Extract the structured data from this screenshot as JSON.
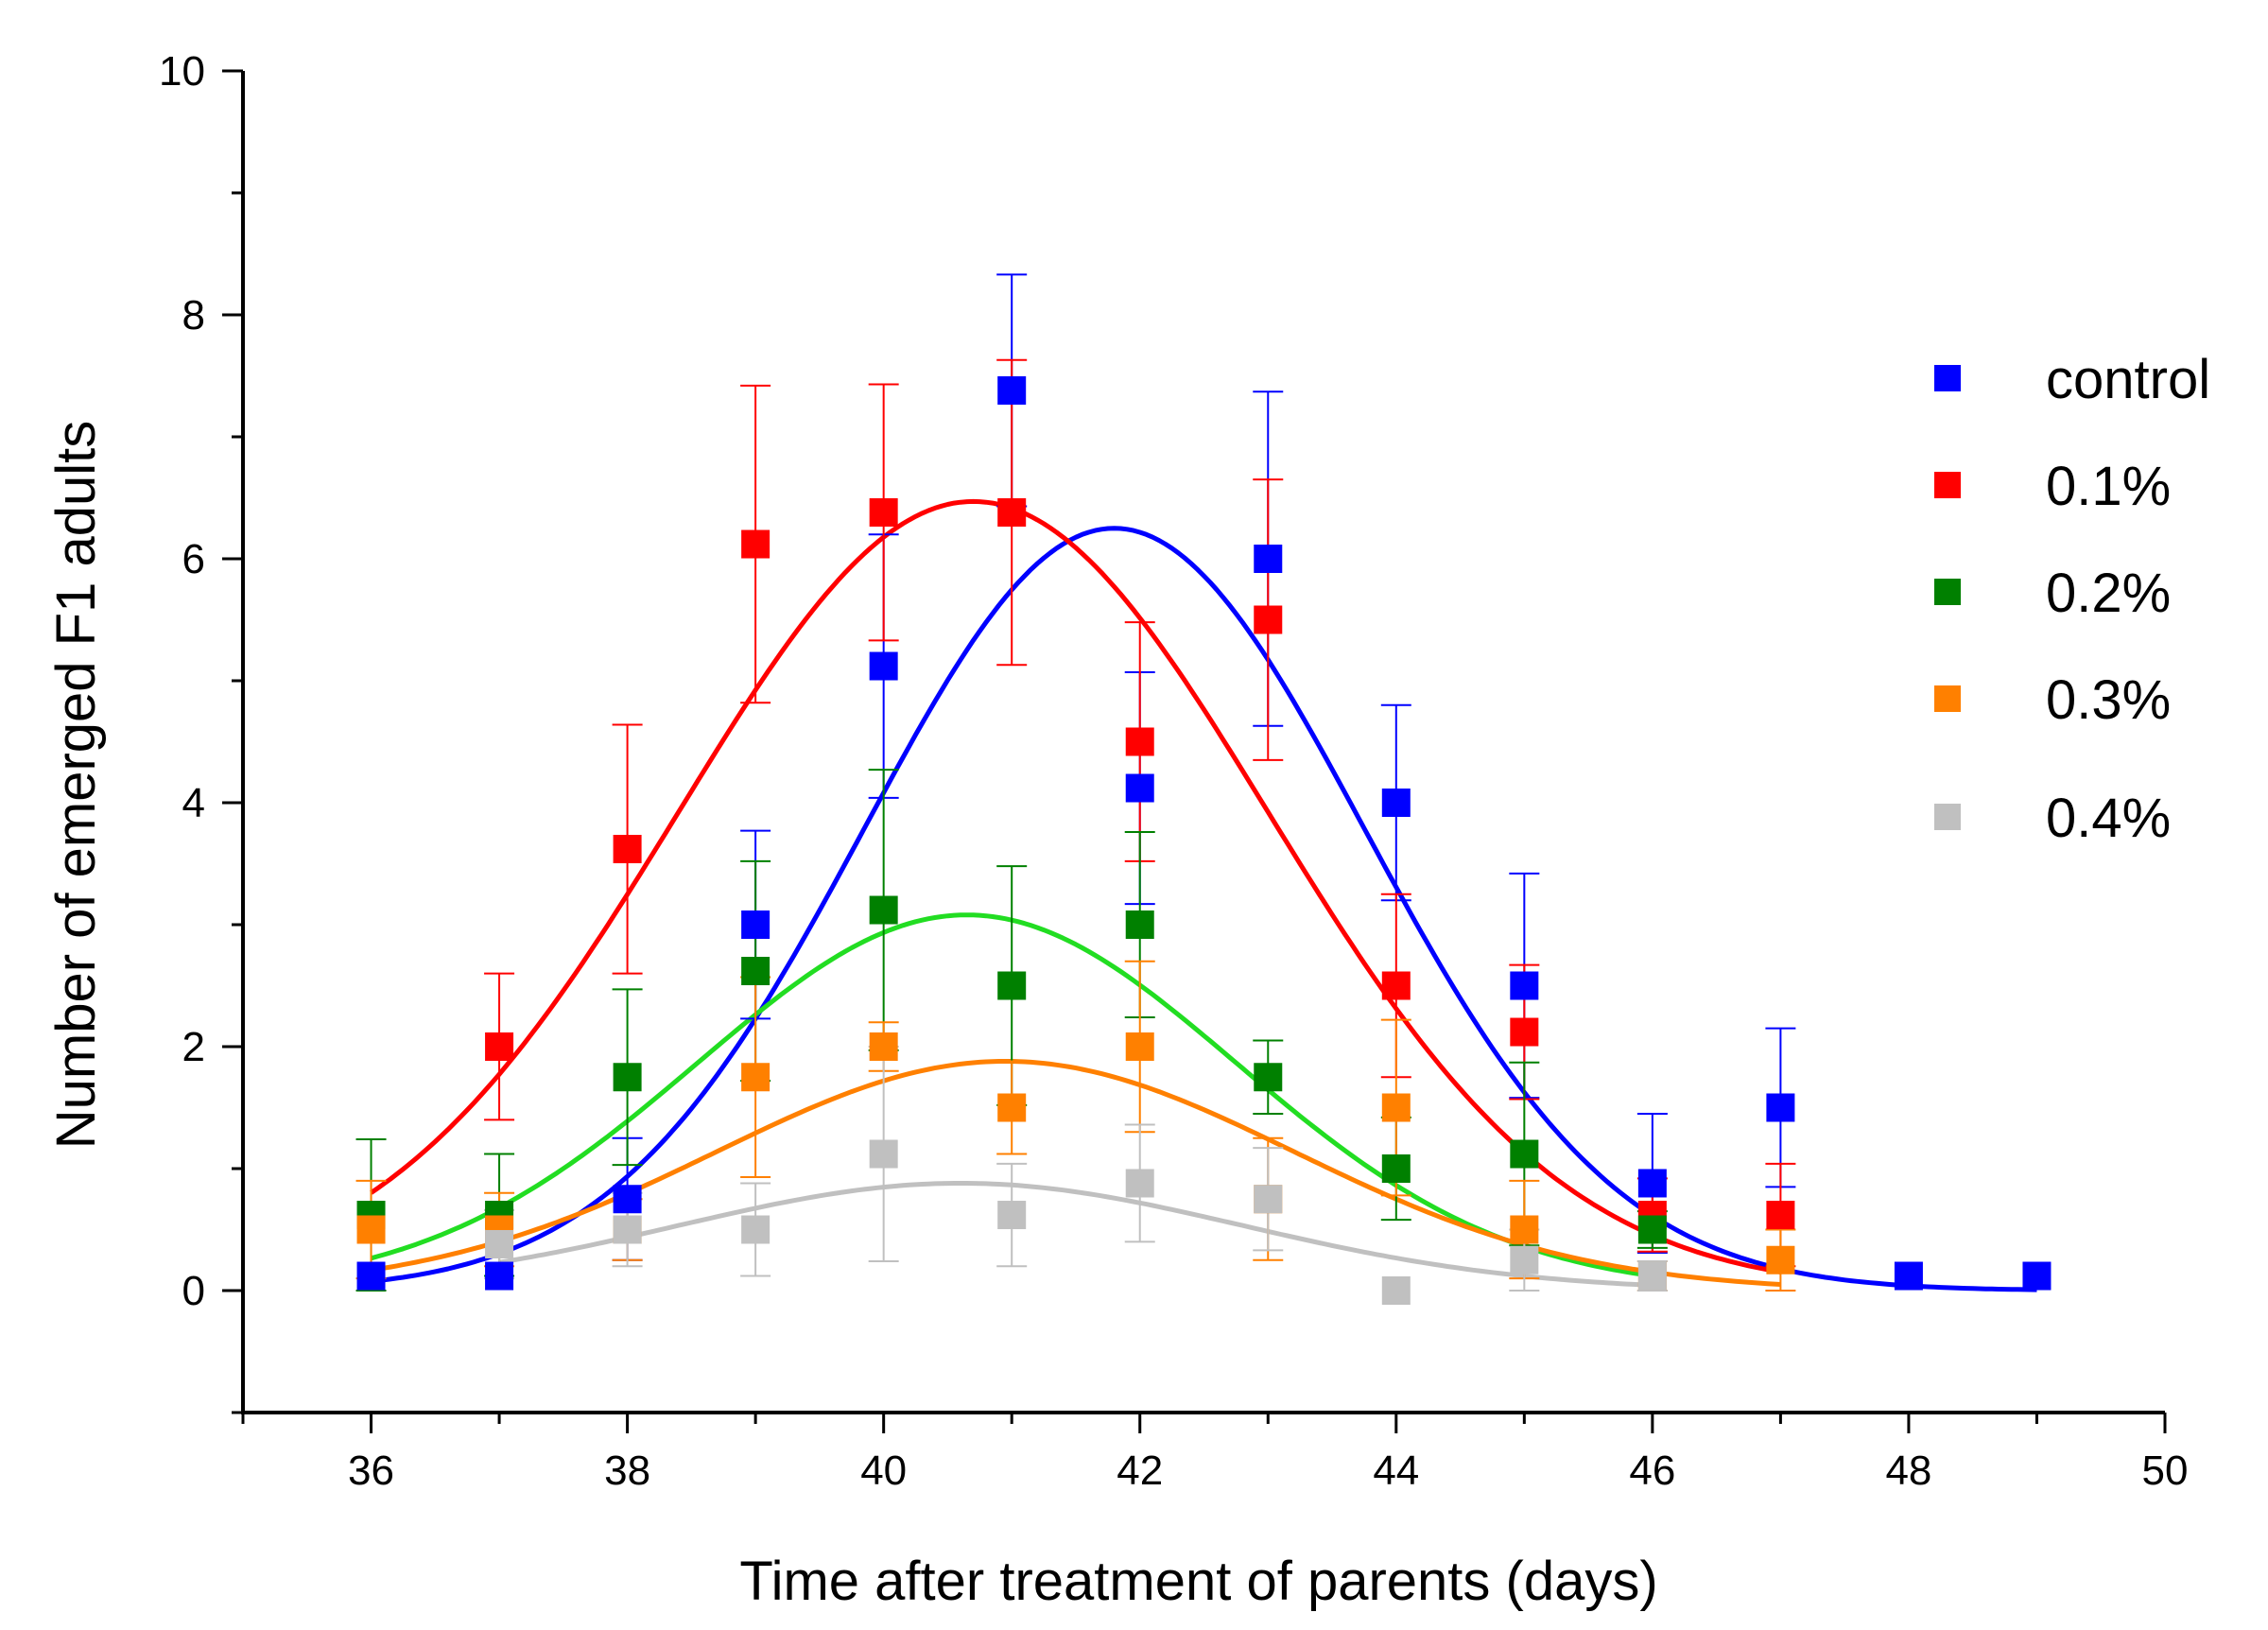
{
  "chart_data": {
    "type": "scatter",
    "title": "",
    "xlabel": "Time after treatment of parents (days)",
    "ylabel": "Number of emerged F1 adults",
    "xlim": [
      35,
      50
    ],
    "ylim": [
      -1,
      10
    ],
    "x_ticks": [
      36,
      38,
      40,
      42,
      44,
      46,
      48,
      50
    ],
    "y_ticks": [
      0,
      2,
      4,
      6,
      8,
      10
    ],
    "x_tick_labels": [
      "36",
      "38",
      "40",
      "42",
      "44",
      "46",
      "48",
      "50"
    ],
    "y_tick_labels": [
      "0",
      "2",
      "4",
      "6",
      "8",
      "10"
    ],
    "grid": false,
    "legend_position": "right",
    "series": [
      {
        "name": "control",
        "color": "#0000ff",
        "x": [
          36,
          37,
          38,
          39,
          40,
          41,
          42,
          43,
          44,
          45,
          46,
          47,
          48,
          49
        ],
        "y": [
          0.12,
          0.12,
          0.75,
          3.0,
          5.12,
          7.38,
          4.12,
          6.0,
          4.0,
          2.5,
          0.88,
          1.5,
          0.12,
          0.12
        ],
        "err": [
          0,
          0,
          0.5,
          0.77,
          1.08,
          0.95,
          0.95,
          1.37,
          0.8,
          0.92,
          0.57,
          0.65,
          0,
          0
        ],
        "fit": {
          "amplitude": 6.25,
          "center": 41.8,
          "sigma": 1.95,
          "x_range": [
            36,
            49
          ]
        }
      },
      {
        "name": "0.1%",
        "color": "#ff0000",
        "x": [
          37,
          38,
          39,
          40,
          41,
          42,
          43,
          44,
          45,
          46,
          47
        ],
        "y": [
          2.0,
          3.62,
          6.12,
          6.38,
          6.38,
          4.5,
          5.5,
          2.5,
          2.12,
          0.62,
          0.62
        ],
        "err": [
          0.6,
          1.02,
          1.3,
          1.05,
          1.25,
          0.98,
          1.15,
          0.75,
          0.55,
          0.3,
          0.42
        ],
        "fit": {
          "amplitude": 6.47,
          "center": 40.7,
          "sigma": 2.3,
          "x_range": [
            36,
            47
          ]
        }
      },
      {
        "name": "0.2%",
        "color": "#008000",
        "x": [
          36,
          37,
          38,
          39,
          40,
          41,
          42,
          43,
          44,
          45,
          46
        ],
        "y": [
          0.62,
          0.62,
          1.75,
          2.62,
          3.12,
          2.5,
          3.0,
          1.75,
          1.0,
          1.12,
          0.5
        ],
        "err": [
          0.62,
          0.5,
          0.72,
          0.9,
          1.15,
          0.98,
          0.76,
          0.3,
          0.42,
          0.75,
          0.15
        ],
        "fit": {
          "amplitude": 3.08,
          "center": 40.65,
          "sigma": 2.1,
          "x_range": [
            36,
            46
          ]
        }
      },
      {
        "name": "0.3%",
        "color": "#ff8000",
        "x": [
          36,
          37,
          38,
          39,
          40,
          41,
          42,
          43,
          44,
          45,
          46,
          47
        ],
        "y": [
          0.5,
          0.5,
          0.5,
          1.75,
          2.0,
          1.5,
          2.0,
          0.75,
          1.5,
          0.5,
          0.12,
          0.25
        ],
        "err": [
          0.4,
          0.3,
          0.25,
          0.82,
          0.2,
          0.38,
          0.7,
          0.5,
          0.72,
          0.4,
          0.12,
          0.25
        ],
        "fit": {
          "amplitude": 1.88,
          "center": 40.95,
          "sigma": 2.25,
          "x_range": [
            36,
            47
          ]
        }
      },
      {
        "name": "0.4%",
        "color": "#c0c0c0",
        "x": [
          37,
          38,
          39,
          40,
          41,
          42,
          43,
          44,
          45,
          46
        ],
        "y": [
          0.38,
          0.5,
          0.5,
          1.12,
          0.62,
          0.88,
          0.75,
          0.0,
          0.25,
          0.12
        ],
        "err": [
          0.28,
          0.3,
          0.38,
          0.88,
          0.42,
          0.48,
          0.42,
          0,
          0.25,
          0.12
        ],
        "fit": {
          "amplitude": 0.88,
          "center": 40.6,
          "sigma": 2.2,
          "x_range": [
            37,
            46
          ]
        }
      }
    ]
  }
}
